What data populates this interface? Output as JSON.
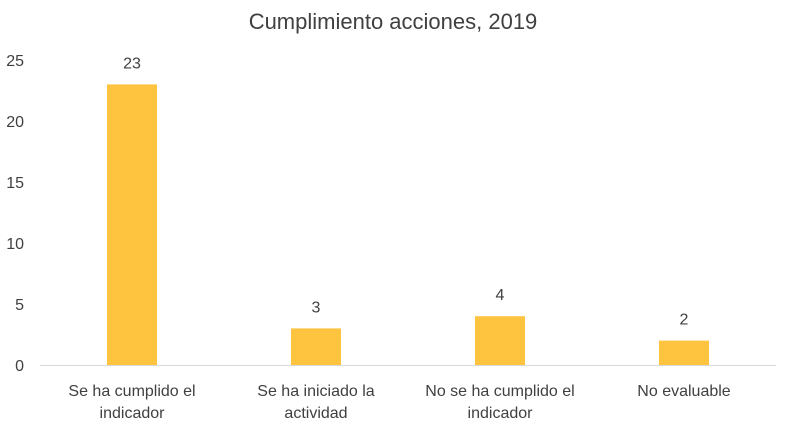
{
  "chart_data": {
    "type": "bar",
    "title": "Cumplimiento acciones, 2019",
    "categories": [
      [
        "Se ha cumplido el",
        "indicador"
      ],
      [
        "Se ha iniciado la",
        "actividad"
      ],
      [
        "No se ha cumplido el",
        "indicador"
      ],
      [
        "No evaluable"
      ]
    ],
    "values": [
      23,
      3,
      4,
      2
    ],
    "ylim": [
      0,
      25
    ],
    "yticks": [
      "0",
      "5",
      "10",
      "15",
      "20",
      "25"
    ],
    "data_labels": [
      "23",
      "3",
      "4",
      "2"
    ],
    "bar_color": "#ffc43f",
    "grid": false,
    "legend": "none"
  }
}
